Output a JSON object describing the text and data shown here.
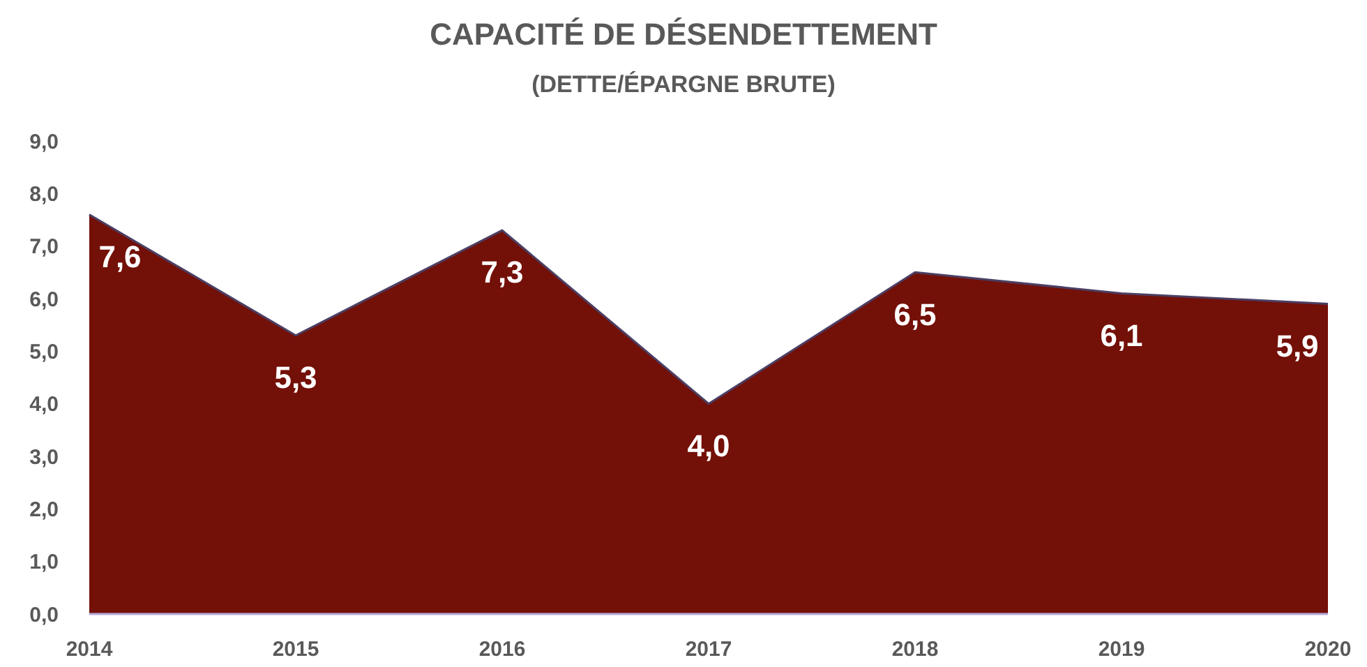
{
  "chart_data": {
    "type": "area",
    "title": "CAPACITÉ DE DÉSENDETTEMENT",
    "subtitle": "(DETTE/ÉPARGNE BRUTE)",
    "categories": [
      "2014",
      "2015",
      "2016",
      "2017",
      "2018",
      "2019",
      "2020"
    ],
    "values": [
      7.6,
      5.3,
      7.3,
      4.0,
      6.5,
      6.1,
      5.9
    ],
    "color": "#731008",
    "value_labels": [
      "7,6",
      "5,3",
      "7,3",
      "4,0",
      "6,5",
      "6,1",
      "5,9"
    ],
    "ylim": [
      0,
      9
    ],
    "yticks": [
      {
        "value": 0,
        "label": "0,0"
      },
      {
        "value": 1,
        "label": "1,0"
      },
      {
        "value": 2,
        "label": "2,0"
      },
      {
        "value": 3,
        "label": "3,0"
      },
      {
        "value": 4,
        "label": "4,0"
      },
      {
        "value": 5,
        "label": "5,0"
      },
      {
        "value": 6,
        "label": "6,0"
      },
      {
        "value": 7,
        "label": "7,0"
      },
      {
        "value": 8,
        "label": "8,0"
      },
      {
        "value": 9,
        "label": "9,0"
      }
    ],
    "grid": false
  }
}
